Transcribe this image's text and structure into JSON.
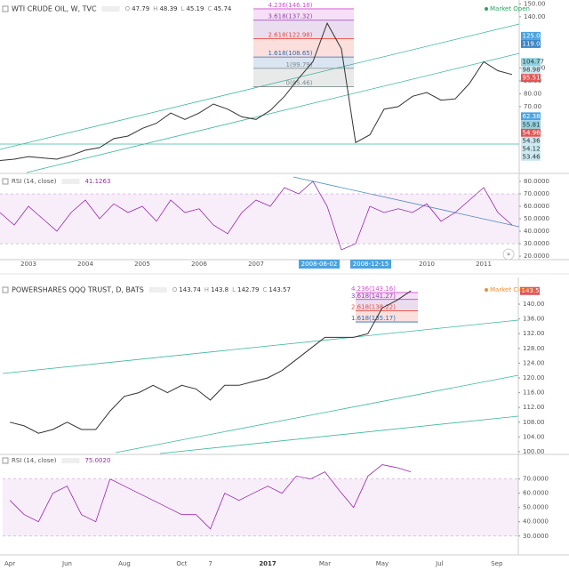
{
  "chart_data": [
    {
      "type": "line",
      "title": "WTI CRUDE OIL, W, TVC",
      "quote": [
        {
          "label": "O",
          "value": 47.79
        },
        {
          "label": "H",
          "value": 48.39
        },
        {
          "label": "L",
          "value": 45.19
        },
        {
          "label": "C",
          "value": 45.74
        }
      ],
      "market_status": "Market Open",
      "status_color": "#26a65b",
      "categories": [
        null,
        null,
        "2003",
        null,
        null,
        null,
        "2004",
        null,
        null,
        null,
        "2005",
        null,
        null,
        null,
        "2006",
        null,
        null,
        null,
        "2007",
        null,
        null,
        null,
        "2008",
        null,
        null,
        null,
        "2009",
        null,
        null,
        null,
        "2010",
        null,
        null,
        null,
        "2011",
        null,
        null
      ],
      "values": [
        28,
        29,
        31,
        30,
        29,
        32,
        36,
        38,
        45,
        47,
        53,
        57,
        65,
        60,
        65,
        72,
        68,
        62,
        60,
        67,
        78,
        92,
        105,
        135,
        115,
        42,
        48,
        68,
        70,
        78,
        81,
        75,
        76,
        88,
        105,
        98,
        95
      ],
      "color": "#333333",
      "ylim": [
        20,
        151
      ],
      "yticks": [
        {
          "value": 150,
          "label": "150.00"
        },
        {
          "value": 140,
          "label": "140.00"
        },
        {
          "value": 100,
          "label": "100.00"
        },
        {
          "value": 90,
          "label": "90.00"
        },
        {
          "value": 80,
          "label": "80.00"
        },
        {
          "value": 70,
          "label": "70.00"
        }
      ],
      "price_labels": [
        {
          "value": 125.09,
          "color": "#4aa3df"
        },
        {
          "value": 119.07,
          "color": "#3d85c6"
        },
        {
          "value": 104.77,
          "color": "#8fd3e0"
        },
        {
          "value": 98.98,
          "color": "#c9e9f0"
        },
        {
          "value": 95.51,
          "color": "#e05555"
        },
        {
          "value": 62.38,
          "color": "#4aa3df"
        },
        {
          "value": 55.81,
          "color": "#8fd3e0"
        },
        {
          "value": 54.96,
          "color": "#e05555"
        },
        {
          "value": 54.36,
          "color": "#c9e9f0"
        },
        {
          "value": 54.12,
          "color": "#c9e9f0"
        },
        {
          "value": 53.46,
          "color": "#c9e9f0"
        }
      ],
      "fib_levels": [
        {
          "label": "4.236(146.18)",
          "value": 146.18,
          "color": "#d04fd0"
        },
        {
          "label": "3.618(137.32)",
          "value": 137.32,
          "color": "#8e44ad"
        },
        {
          "label": "2.618(122.98)",
          "value": 122.98,
          "color": "#e74c3c"
        },
        {
          "label": "1.618(108.65)",
          "value": 108.65,
          "color": "#2e6db4"
        },
        {
          "label": "1(99.79)",
          "value": 99.79,
          "color": "#7f8c8d"
        },
        {
          "label": "0(85.46)",
          "value": 85.46,
          "color": "#7f8c8d"
        }
      ],
      "highlighted_dates": [
        "2008-06-02",
        "2008-12-15"
      ],
      "rsi": {
        "title": "RSI (14, close)",
        "value": {
          "value": 41.1263,
          "label": "41.1263"
        },
        "color": "#9c27b0",
        "band": [
          30,
          70
        ],
        "values": [
          55,
          45,
          60,
          50,
          40,
          55,
          65,
          50,
          62,
          55,
          60,
          48,
          65,
          55,
          58,
          45,
          38,
          55,
          65,
          60,
          75,
          70,
          80,
          60,
          25,
          30,
          60,
          55,
          58,
          55,
          62,
          48,
          55,
          65,
          75,
          55,
          45
        ],
        "ylim": [
          18.6,
          84.3
        ],
        "yticks": [
          {
            "value": 80,
            "label": "80.0000"
          },
          {
            "value": 70,
            "label": "70.0000"
          },
          {
            "value": 60,
            "label": "60.0000"
          },
          {
            "value": 50,
            "label": "50.0000"
          },
          {
            "value": 40,
            "label": "40.0000"
          },
          {
            "value": 30,
            "label": "30.0000"
          },
          {
            "value": 20,
            "label": "20.0000"
          }
        ]
      }
    },
    {
      "type": "line",
      "title": "POWERSHARES QQQ TRUST, D, BATS",
      "quote": [
        {
          "label": "O",
          "value": 143.74
        },
        {
          "label": "H",
          "value": 143.8
        },
        {
          "label": "L",
          "value": 142.79
        },
        {
          "label": "C",
          "value": 143.57
        }
      ],
      "market_status": "Market Closed",
      "status_color": "#f08c2a",
      "categories": [
        "Apr",
        null,
        null,
        null,
        "Jun",
        null,
        null,
        null,
        "Aug",
        null,
        null,
        null,
        "Oct",
        null,
        "7",
        null,
        null,
        null,
        "2017",
        null,
        null,
        null,
        "Mar",
        null,
        null,
        null,
        "May",
        null,
        null,
        null,
        "Jul",
        null,
        null,
        null,
        "Sep",
        null
      ],
      "values": [
        108,
        107,
        105,
        106,
        108,
        106,
        106,
        111,
        115,
        116,
        118,
        116,
        118,
        117,
        114,
        118,
        118,
        119,
        120,
        122,
        125,
        128,
        131,
        131,
        131,
        132,
        139,
        141,
        143.6,
        null,
        null,
        null,
        null,
        null,
        null,
        null
      ],
      "color": "#333333",
      "ylim": [
        99.5,
        145.8
      ],
      "yticks": [
        {
          "value": 140,
          "label": "140.00"
        },
        {
          "value": 136,
          "label": "136.00"
        },
        {
          "value": 132,
          "label": "132.00"
        },
        {
          "value": 128,
          "label": "128.00"
        },
        {
          "value": 124,
          "label": "124.00"
        },
        {
          "value": 120,
          "label": "120.00"
        },
        {
          "value": 116,
          "label": "116.00"
        },
        {
          "value": 112,
          "label": "112.00"
        },
        {
          "value": 108,
          "label": "108.00"
        },
        {
          "value": 104,
          "label": "104.00"
        },
        {
          "value": 100,
          "label": "100.00"
        }
      ],
      "price_labels": [
        {
          "value": 143.57,
          "color": "#e05555"
        }
      ],
      "fib_levels": [
        {
          "label": "4.236(143.16)",
          "value": 143.16,
          "color": "#d04fd0"
        },
        {
          "label": "3.618(141.27)",
          "value": 141.27,
          "color": "#8e44ad"
        },
        {
          "label": "2.618(138.22)",
          "value": 138.22,
          "color": "#e74c3c"
        },
        {
          "label": "1.618(135.17)",
          "value": 135.17,
          "color": "#2e6db4"
        }
      ],
      "highlighted_dates": [],
      "rsi": {
        "title": "RSI (14, close)",
        "value": {
          "value": 75.002,
          "label": "75.0020"
        },
        "color": "#9c27b0",
        "band": [
          30,
          70
        ],
        "values": [
          55,
          45,
          40,
          60,
          65,
          45,
          40,
          70,
          65,
          60,
          55,
          50,
          45,
          45,
          35,
          60,
          55,
          60,
          65,
          60,
          72,
          70,
          75,
          62,
          50,
          72,
          80,
          78,
          75,
          null,
          null,
          null,
          null,
          null,
          null,
          null
        ],
        "ylim": [
          18,
          86
        ],
        "yticks": [
          {
            "value": 70,
            "label": "70.0000"
          },
          {
            "value": 60,
            "label": "60.0000"
          },
          {
            "value": 50,
            "label": "50.0000"
          },
          {
            "value": 40,
            "label": "40.0000"
          },
          {
            "value": 30,
            "label": "30.0000"
          }
        ]
      }
    }
  ]
}
